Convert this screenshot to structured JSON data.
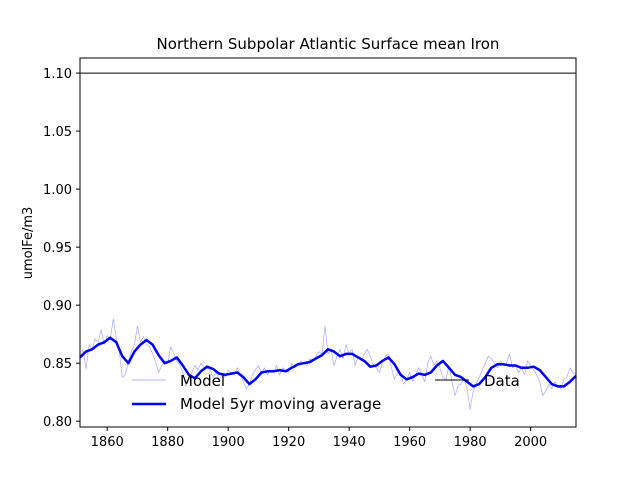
{
  "chart_data": {
    "type": "line",
    "title": "Northern Subpolar Atlantic Surface mean Iron",
    "xlabel": "",
    "ylabel": "umolFe/m3",
    "xlim": [
      1851,
      2015
    ],
    "ylim": [
      0.795,
      1.113
    ],
    "xticks": [
      1860,
      1880,
      1900,
      1920,
      1940,
      1960,
      1980,
      2000
    ],
    "yticks": [
      0.8,
      0.85,
      0.9,
      0.95,
      1.0,
      1.05,
      1.1
    ],
    "grid": false,
    "legend_position": "bottom-center",
    "series": [
      {
        "name": "Model",
        "color": "#0000ff",
        "x": [
          1851,
          1852,
          1853,
          1854,
          1855,
          1856,
          1857,
          1858,
          1859,
          1860,
          1861,
          1862,
          1863,
          1864,
          1865,
          1866,
          1867,
          1868,
          1869,
          1870,
          1871,
          1872,
          1873,
          1874,
          1875,
          1876,
          1877,
          1878,
          1879,
          1880,
          1881,
          1882,
          1883,
          1884,
          1885,
          1886,
          1887,
          1888,
          1889,
          1890,
          1891,
          1892,
          1893,
          1894,
          1895,
          1896,
          1897,
          1898,
          1899,
          1900,
          1901,
          1902,
          1903,
          1904,
          1905,
          1906,
          1907,
          1908,
          1909,
          1910,
          1911,
          1912,
          1913,
          1914,
          1915,
          1916,
          1917,
          1918,
          1919,
          1920,
          1921,
          1922,
          1923,
          1924,
          1925,
          1926,
          1927,
          1928,
          1929,
          1930,
          1931,
          1932,
          1933,
          1934,
          1935,
          1936,
          1937,
          1938,
          1939,
          1940,
          1941,
          1942,
          1943,
          1944,
          1945,
          1946,
          1947,
          1948,
          1949,
          1950,
          1951,
          1952,
          1953,
          1954,
          1955,
          1956,
          1957,
          1958,
          1959,
          1960,
          1961,
          1962,
          1963,
          1964,
          1965,
          1966,
          1967,
          1968,
          1969,
          1970,
          1971,
          1972,
          1973,
          1974,
          1975,
          1976,
          1977,
          1978,
          1979,
          1980,
          1981,
          1982,
          1983,
          1984,
          1985,
          1986,
          1987,
          1988,
          1989,
          1990,
          1991,
          1992,
          1993,
          1994,
          1995,
          1996,
          1997,
          1998,
          1999,
          2000,
          2001,
          2002,
          2003,
          2004,
          2005,
          2006,
          2007,
          2008,
          2009,
          2010,
          2011,
          2012,
          2013,
          2014,
          2015
        ],
        "y": [
          0.853,
          0.862,
          0.845,
          0.866,
          0.862,
          0.871,
          0.868,
          0.879,
          0.866,
          0.874,
          0.87,
          0.888,
          0.872,
          0.86,
          0.838,
          0.84,
          0.852,
          0.86,
          0.866,
          0.882,
          0.868,
          0.873,
          0.866,
          0.864,
          0.858,
          0.851,
          0.842,
          0.848,
          0.852,
          0.85,
          0.864,
          0.858,
          0.852,
          0.848,
          0.842,
          0.83,
          0.836,
          0.842,
          0.848,
          0.844,
          0.85,
          0.846,
          0.848,
          0.844,
          0.838,
          0.842,
          0.836,
          0.84,
          0.838,
          0.844,
          0.842,
          0.84,
          0.846,
          0.84,
          0.834,
          0.828,
          0.832,
          0.84,
          0.844,
          0.848,
          0.842,
          0.846,
          0.84,
          0.844,
          0.842,
          0.848,
          0.84,
          0.846,
          0.844,
          0.842,
          0.85,
          0.846,
          0.848,
          0.852,
          0.85,
          0.848,
          0.854,
          0.852,
          0.856,
          0.86,
          0.858,
          0.882,
          0.858,
          0.862,
          0.848,
          0.856,
          0.862,
          0.854,
          0.866,
          0.858,
          0.862,
          0.848,
          0.856,
          0.852,
          0.858,
          0.862,
          0.856,
          0.848,
          0.846,
          0.842,
          0.85,
          0.856,
          0.858,
          0.846,
          0.836,
          0.842,
          0.84,
          0.832,
          0.836,
          0.842,
          0.834,
          0.84,
          0.846,
          0.84,
          0.834,
          0.85,
          0.856,
          0.848,
          0.852,
          0.846,
          0.838,
          0.836,
          0.848,
          0.834,
          0.822,
          0.83,
          0.832,
          0.836,
          0.828,
          0.81,
          0.826,
          0.832,
          0.838,
          0.844,
          0.85,
          0.856,
          0.854,
          0.85,
          0.846,
          0.852,
          0.848,
          0.85,
          0.858,
          0.846,
          0.848,
          0.842,
          0.846,
          0.84,
          0.852,
          0.848,
          0.844,
          0.84,
          0.834,
          0.822,
          0.826,
          0.832,
          0.828,
          0.834,
          0.83,
          0.828,
          0.836,
          0.838,
          0.846,
          0.842,
          0.84
        ]
      },
      {
        "name": "Model 5yr moving average",
        "color": "#0000ff",
        "x": [
          1851,
          1853,
          1855,
          1857,
          1859,
          1861,
          1863,
          1865,
          1867,
          1869,
          1871,
          1873,
          1875,
          1877,
          1879,
          1881,
          1883,
          1885,
          1887,
          1889,
          1891,
          1893,
          1895,
          1897,
          1899,
          1901,
          1903,
          1905,
          1907,
          1909,
          1911,
          1913,
          1915,
          1917,
          1919,
          1921,
          1923,
          1925,
          1927,
          1929,
          1931,
          1933,
          1935,
          1937,
          1939,
          1941,
          1943,
          1945,
          1947,
          1949,
          1951,
          1953,
          1955,
          1957,
          1959,
          1961,
          1963,
          1965,
          1967,
          1969,
          1971,
          1973,
          1975,
          1977,
          1979,
          1981,
          1983,
          1985,
          1987,
          1989,
          1991,
          1993,
          1995,
          1997,
          1999,
          2001,
          2003,
          2005,
          2007,
          2009,
          2011,
          2013,
          2015
        ],
        "y": [
          0.855,
          0.86,
          0.862,
          0.866,
          0.868,
          0.872,
          0.868,
          0.856,
          0.85,
          0.86,
          0.866,
          0.87,
          0.866,
          0.857,
          0.85,
          0.852,
          0.855,
          0.848,
          0.84,
          0.837,
          0.843,
          0.847,
          0.845,
          0.841,
          0.84,
          0.841,
          0.842,
          0.838,
          0.832,
          0.836,
          0.842,
          0.843,
          0.843,
          0.844,
          0.843,
          0.846,
          0.849,
          0.85,
          0.851,
          0.854,
          0.857,
          0.862,
          0.86,
          0.856,
          0.858,
          0.858,
          0.855,
          0.852,
          0.847,
          0.848,
          0.852,
          0.855,
          0.849,
          0.84,
          0.836,
          0.838,
          0.841,
          0.84,
          0.842,
          0.848,
          0.852,
          0.846,
          0.84,
          0.838,
          0.834,
          0.83,
          0.832,
          0.838,
          0.846,
          0.849,
          0.849,
          0.848,
          0.848,
          0.846,
          0.846,
          0.847,
          0.844,
          0.838,
          0.832,
          0.83,
          0.83,
          0.834,
          0.839
        ]
      },
      {
        "name": "Data",
        "color": "#000000",
        "x": [
          1851,
          2015
        ],
        "y": [
          1.1,
          1.1
        ]
      }
    ]
  }
}
